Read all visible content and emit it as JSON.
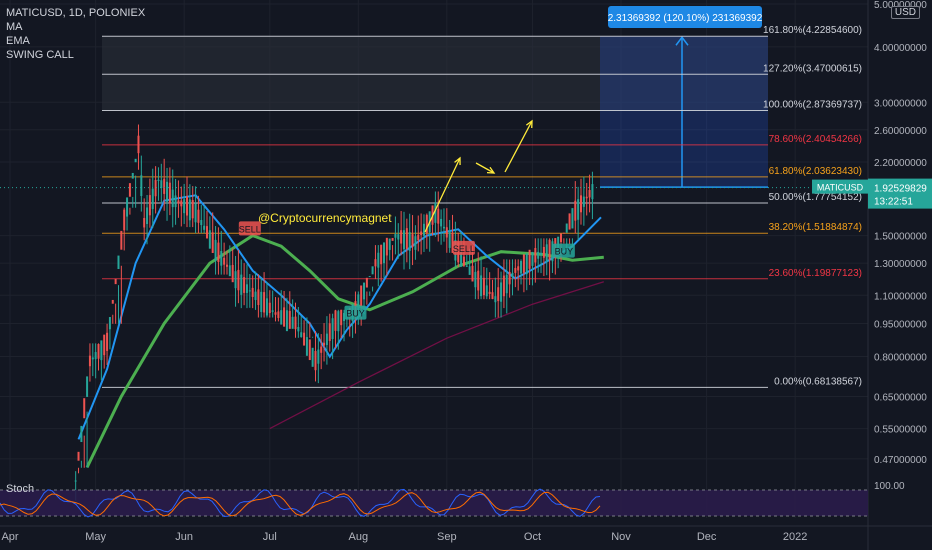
{
  "header": {
    "symbol_line": "MATICUSD, 1D, POLONIEX",
    "indicators": [
      "MA",
      "EMA",
      "SWING CALL"
    ],
    "currency": "USD"
  },
  "price_label": {
    "symbol": "MATICUSD",
    "price": "1.92529829",
    "countdown": "13:22:51"
  },
  "measure_label": "2.31369392 (120.10%) 231369392",
  "watermark": "@Cryptocurrencymagnet",
  "stoch_label": "Stoch",
  "stoch_scale": "100.00",
  "colors": {
    "background": "#131722",
    "up": "#26a69a",
    "down": "#ef5350",
    "fib_white": "#d1d4dc",
    "fib_red": "#f23645",
    "fib_orange": "#f7a21b",
    "ema_blue": "#2196f3",
    "measure": "#2962ff",
    "sell": "#ef5350",
    "buy": "#26a69a"
  },
  "chart_data": {
    "type": "candlestick",
    "y_scale": "log",
    "ylim": [
      0.43,
      5.0
    ],
    "y_ticks": [
      "5.00000000",
      "4.00000000",
      "3.00000000",
      "2.60000000",
      "2.20000000",
      "1.50000000",
      "1.30000000",
      "1.10000000",
      "0.95000000",
      "0.80000000",
      "0.65000000",
      "0.55000000",
      "0.47000000"
    ],
    "x_ticks": [
      "Apr",
      "May",
      "Jun",
      "Jul",
      "Aug",
      "Sep",
      "Oct",
      "Nov",
      "Dec",
      "2022"
    ],
    "fib_levels": [
      {
        "label": "161.80%(4.22854600)",
        "value": 4.228546,
        "color": "white"
      },
      {
        "label": "127.20%(3.47000615)",
        "value": 3.47000615,
        "color": "white"
      },
      {
        "label": "100.00%(2.87369737)",
        "value": 2.87369737,
        "color": "white"
      },
      {
        "label": "78.60%(2.40454266)",
        "value": 2.40454266,
        "color": "red"
      },
      {
        "label": "61.80%(2.03623430)",
        "value": 2.0362343,
        "color": "orange"
      },
      {
        "label": "50.00%(1.77754152)",
        "value": 1.77754152,
        "color": "white"
      },
      {
        "label": "38.20%(1.51884874)",
        "value": 1.51884874,
        "color": "orange"
      },
      {
        "label": "23.60%(1.19877123)",
        "value": 1.19877123,
        "color": "red"
      },
      {
        "label": "0.00%(0.68138567)",
        "value": 0.68138567,
        "color": "white"
      }
    ],
    "markers": [
      {
        "label": "SELL",
        "date": "2021-06-24",
        "price": 1.55,
        "type": "sell"
      },
      {
        "label": "BUY",
        "date": "2021-07-31",
        "price": 1.0,
        "type": "buy"
      },
      {
        "label": "SELL",
        "date": "2021-09-07",
        "price": 1.4,
        "type": "sell"
      },
      {
        "label": "BUY",
        "date": "2021-10-12",
        "price": 1.38,
        "type": "buy"
      }
    ],
    "ohlc_weekly": [
      {
        "date": "2021-04-24",
        "o": 0.4,
        "h": 0.44,
        "l": 0.36,
        "c": 0.42
      },
      {
        "date": "2021-04-29",
        "o": 0.42,
        "h": 0.84,
        "l": 0.4,
        "c": 0.78
      },
      {
        "date": "2021-05-05",
        "o": 0.78,
        "h": 0.93,
        "l": 0.72,
        "c": 0.86
      },
      {
        "date": "2021-05-11",
        "o": 0.86,
        "h": 1.7,
        "l": 0.82,
        "c": 1.62
      },
      {
        "date": "2021-05-16",
        "o": 1.62,
        "h": 2.62,
        "l": 1.5,
        "c": 2.4
      },
      {
        "date": "2021-05-18",
        "o": 2.4,
        "h": 2.77,
        "l": 1.3,
        "c": 1.6
      },
      {
        "date": "2021-05-23",
        "o": 1.6,
        "h": 2.45,
        "l": 0.95,
        "c": 2.0
      },
      {
        "date": "2021-05-29",
        "o": 2.0,
        "h": 2.3,
        "l": 1.6,
        "c": 1.8
      },
      {
        "date": "2021-06-05",
        "o": 1.8,
        "h": 1.9,
        "l": 1.55,
        "c": 1.7
      },
      {
        "date": "2021-06-12",
        "o": 1.7,
        "h": 1.75,
        "l": 1.25,
        "c": 1.4
      },
      {
        "date": "2021-06-19",
        "o": 1.4,
        "h": 1.55,
        "l": 1.05,
        "c": 1.2
      },
      {
        "date": "2021-06-26",
        "o": 1.2,
        "h": 1.3,
        "l": 1.0,
        "c": 1.1
      },
      {
        "date": "2021-07-03",
        "o": 1.1,
        "h": 1.15,
        "l": 0.98,
        "c": 1.0
      },
      {
        "date": "2021-07-10",
        "o": 1.0,
        "h": 1.05,
        "l": 0.9,
        "c": 0.95
      },
      {
        "date": "2021-07-17",
        "o": 0.95,
        "h": 0.98,
        "l": 0.66,
        "c": 0.78
      },
      {
        "date": "2021-07-24",
        "o": 0.78,
        "h": 1.0,
        "l": 0.74,
        "c": 0.96
      },
      {
        "date": "2021-07-31",
        "o": 0.96,
        "h": 1.1,
        "l": 0.92,
        "c": 1.02
      },
      {
        "date": "2021-08-07",
        "o": 1.02,
        "h": 1.4,
        "l": 1.0,
        "c": 1.3
      },
      {
        "date": "2021-08-14",
        "o": 1.3,
        "h": 1.7,
        "l": 1.2,
        "c": 1.5
      },
      {
        "date": "2021-08-21",
        "o": 1.5,
        "h": 1.65,
        "l": 1.35,
        "c": 1.45
      },
      {
        "date": "2021-08-28",
        "o": 1.45,
        "h": 1.85,
        "l": 1.4,
        "c": 1.7
      },
      {
        "date": "2021-09-04",
        "o": 1.7,
        "h": 1.75,
        "l": 1.3,
        "c": 1.4
      },
      {
        "date": "2021-09-11",
        "o": 1.4,
        "h": 1.5,
        "l": 1.1,
        "c": 1.2
      },
      {
        "date": "2021-09-18",
        "o": 1.2,
        "h": 1.3,
        "l": 1.0,
        "c": 1.08
      },
      {
        "date": "2021-09-25",
        "o": 1.08,
        "h": 1.3,
        "l": 1.02,
        "c": 1.25
      },
      {
        "date": "2021-10-02",
        "o": 1.25,
        "h": 1.45,
        "l": 1.15,
        "c": 1.35
      },
      {
        "date": "2021-10-09",
        "o": 1.35,
        "h": 1.45,
        "l": 1.12,
        "c": 1.4
      },
      {
        "date": "2021-10-16",
        "o": 1.4,
        "h": 2.05,
        "l": 1.35,
        "c": 1.7
      },
      {
        "date": "2021-10-23",
        "o": 1.7,
        "h": 2.02,
        "l": 1.55,
        "c": 1.93
      }
    ]
  }
}
